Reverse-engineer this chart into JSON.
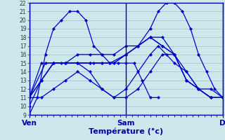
{
  "background_color": "#cce8ec",
  "line_color": "#0000cc",
  "grid_color": "#aabbcc",
  "axis_color": "#0000aa",
  "xlabel": "Température (°c)",
  "xtick_labels": [
    "Ven",
    "Sam",
    "D"
  ],
  "xtick_positions": [
    0,
    48,
    96
  ],
  "xlim": [
    0,
    96
  ],
  "ylim": [
    9,
    22
  ],
  "yticks": [
    9,
    10,
    11,
    12,
    13,
    14,
    15,
    16,
    17,
    18,
    19,
    20,
    21,
    22
  ],
  "series": [
    {
      "x": [
        0,
        4,
        8,
        12,
        16,
        20,
        24,
        28,
        32,
        36,
        40,
        44,
        48,
        52,
        56,
        60,
        64
      ],
      "y": [
        9,
        11,
        16,
        19,
        20,
        21,
        21,
        20,
        17,
        16,
        15,
        15,
        15,
        15,
        13,
        11,
        11
      ]
    },
    {
      "x": [
        0,
        6,
        12,
        18,
        24,
        30,
        36,
        42,
        48,
        54,
        60,
        66,
        72,
        78,
        84,
        90,
        96
      ],
      "y": [
        11,
        13,
        15,
        15,
        15,
        15,
        15,
        15,
        16,
        17,
        18,
        17,
        16,
        13,
        12,
        11,
        11
      ]
    },
    {
      "x": [
        0,
        6,
        12,
        18,
        24,
        30,
        36,
        42,
        48,
        54,
        60,
        66,
        72,
        78,
        84,
        90,
        96
      ],
      "y": [
        11,
        11,
        12,
        13,
        14,
        13,
        12,
        11,
        11,
        12,
        14,
        16,
        16,
        14,
        12,
        12,
        11
      ]
    },
    {
      "x": [
        0,
        6,
        12,
        18,
        24,
        30,
        36,
        42,
        48,
        54,
        60,
        66,
        72,
        78,
        84,
        90,
        96
      ],
      "y": [
        10,
        13,
        15,
        15,
        15,
        15,
        15,
        15,
        16,
        17,
        18,
        17,
        16,
        13,
        12,
        11,
        11
      ]
    },
    {
      "x": [
        0,
        6,
        12,
        18,
        24,
        30,
        36,
        42,
        48,
        54,
        60,
        66,
        72,
        78,
        84,
        90,
        96
      ],
      "y": [
        11,
        15,
        15,
        15,
        16,
        16,
        16,
        16,
        17,
        17,
        18,
        18,
        16,
        13,
        12,
        11,
        11
      ]
    },
    {
      "x": [
        0,
        8,
        16,
        24,
        32,
        40,
        48,
        54,
        60,
        64,
        68,
        72,
        76,
        80,
        84,
        88,
        92,
        96
      ],
      "y": [
        11,
        15,
        15,
        15,
        15,
        15,
        16,
        17,
        19,
        21,
        22,
        22,
        21,
        19,
        16,
        14,
        12,
        11
      ]
    },
    {
      "x": [
        0,
        6,
        12,
        18,
        24,
        30,
        36,
        42,
        48,
        54,
        60,
        64,
        68,
        72,
        78,
        84,
        90,
        96
      ],
      "y": [
        11,
        13,
        15,
        15,
        15,
        14,
        12,
        11,
        12,
        14,
        16,
        17,
        16,
        15,
        14,
        12,
        11,
        11
      ]
    }
  ]
}
